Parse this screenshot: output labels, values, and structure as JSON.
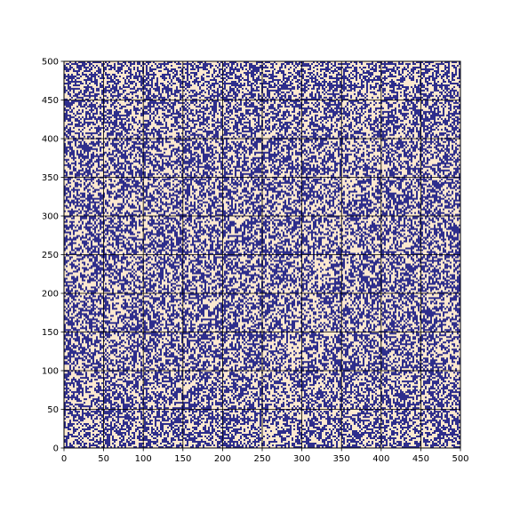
{
  "chart_data": {
    "type": "heatmap",
    "title": "",
    "xlabel": "",
    "ylabel": "",
    "xlim": [
      0,
      500
    ],
    "ylim": [
      0,
      500
    ],
    "x_ticks": [
      "0",
      "50",
      "100",
      "150",
      "200",
      "250",
      "300",
      "350",
      "400",
      "450",
      "500"
    ],
    "y_ticks": [
      "0",
      "50",
      "100",
      "150",
      "200",
      "250",
      "300",
      "350",
      "400",
      "450",
      "500"
    ],
    "grid": true,
    "grid_color": "#000000",
    "pattern": "random binary noise",
    "fill_fraction": 0.5,
    "colors": {
      "on": "#2e2e8c",
      "off": "#fbe8cf"
    },
    "legend": "none"
  }
}
